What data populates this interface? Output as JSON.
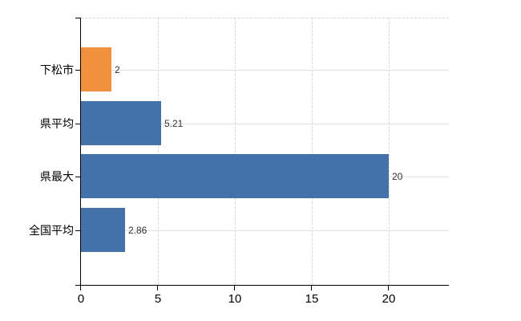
{
  "chart_data": {
    "type": "bar",
    "orientation": "horizontal",
    "title": "",
    "categories": [
      "下松市",
      "県平均",
      "県最大",
      "全国平均"
    ],
    "values": [
      2,
      5.21,
      20,
      2.86
    ],
    "value_labels": [
      "2",
      "5.21",
      "20",
      "2.86"
    ],
    "bar_colors": [
      "#f1913d",
      "#4472a8",
      "#4472a8",
      "#4472a8"
    ],
    "x_ticks": [
      0,
      5,
      10,
      15,
      20
    ],
    "x_tick_labels": [
      "0",
      "5",
      "10",
      "15",
      "20"
    ],
    "xlim": [
      0,
      23.9
    ],
    "grid": true,
    "legend": false,
    "colors": {
      "highlight_bar": "#f1913d",
      "default_bar": "#4472a8",
      "grid_horizontal": "#dde3dc",
      "grid_vertical": "#d8d8d8",
      "axis": "#000000",
      "category_text": "#000000",
      "value_text": "#333333"
    }
  }
}
